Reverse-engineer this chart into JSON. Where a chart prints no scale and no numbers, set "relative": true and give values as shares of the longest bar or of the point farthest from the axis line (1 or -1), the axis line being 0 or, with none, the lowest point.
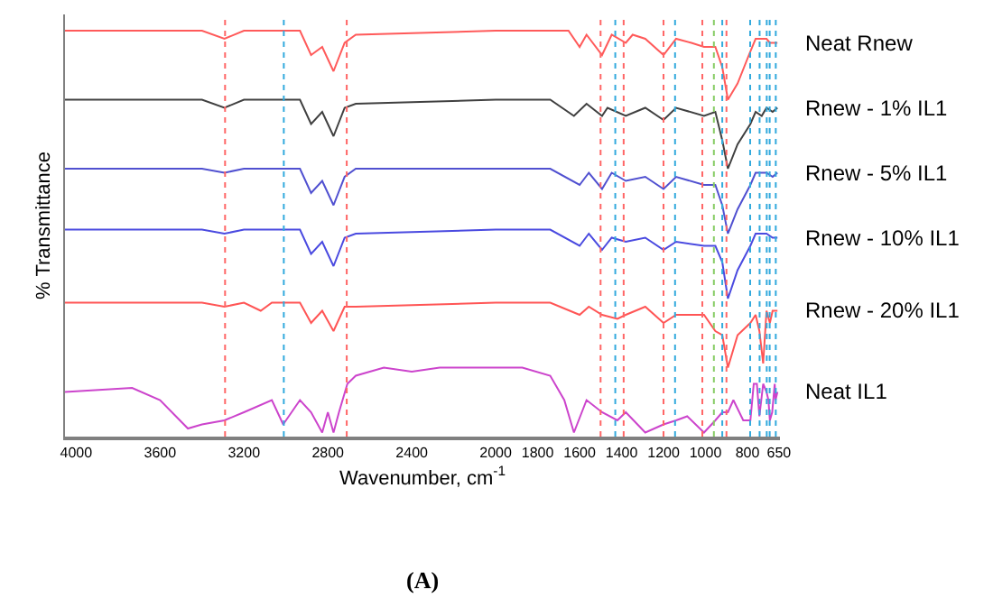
{
  "chart_data": {
    "type": "line",
    "relative": true,
    "xlabel": "Wavenumber, cm$^{-1}$",
    "ylabel": "% Transmittance",
    "xlim": [
      4053,
      645
    ],
    "xticks": [
      4000,
      3600,
      3200,
      2800,
      2400,
      2000,
      1800,
      1600,
      1400,
      1200,
      1000,
      800,
      650
    ],
    "legend": false,
    "marker": "none",
    "line_style": "solid",
    "series": [
      {
        "name": "Neat Rnew",
        "color": "#ff5a5a",
        "x": [
          4053,
          3400,
          3293,
          3200,
          2933,
          2880,
          2827,
          2773,
          2720,
          2667,
          2000,
          1740,
          1653,
          1600,
          1567,
          1493,
          1447,
          1380,
          1347,
          1287,
          1200,
          1140,
          1067,
          1007,
          953,
          920,
          893,
          847,
          793,
          761,
          743,
          709,
          693,
          680,
          657
        ],
        "values": [
          1.0,
          1.0,
          0.98,
          1.0,
          1.0,
          0.94,
          0.96,
          0.9,
          0.97,
          0.99,
          1.0,
          1.0,
          1.0,
          0.96,
          0.99,
          0.94,
          0.99,
          0.97,
          0.99,
          0.98,
          0.94,
          0.98,
          0.97,
          0.96,
          0.96,
          0.91,
          0.83,
          0.87,
          0.94,
          0.98,
          0.98,
          0.98,
          0.97,
          0.97,
          0.97
        ]
      },
      {
        "name": "Rnew - 1% IL1",
        "color": "#404040",
        "x": [
          4053,
          3400,
          3293,
          3200,
          2933,
          2880,
          2827,
          2773,
          2720,
          2667,
          2000,
          1740,
          1627,
          1567,
          1493,
          1467,
          1380,
          1287,
          1200,
          1140,
          1007,
          953,
          920,
          893,
          847,
          786,
          761,
          732,
          709,
          680,
          657
        ],
        "values": [
          0.83,
          0.83,
          0.81,
          0.83,
          0.83,
          0.77,
          0.8,
          0.74,
          0.81,
          0.82,
          0.83,
          0.83,
          0.79,
          0.82,
          0.79,
          0.81,
          0.79,
          0.81,
          0.78,
          0.81,
          0.79,
          0.8,
          0.73,
          0.66,
          0.72,
          0.77,
          0.8,
          0.79,
          0.81,
          0.8,
          0.81
        ]
      },
      {
        "name": "Rnew - 5% IL1",
        "color": "#5050d0",
        "x": [
          4053,
          3400,
          3293,
          3200,
          2933,
          2880,
          2827,
          2773,
          2720,
          2667,
          2000,
          1740,
          1600,
          1556,
          1493,
          1447,
          1380,
          1287,
          1200,
          1140,
          1007,
          953,
          920,
          893,
          847,
          786,
          761,
          709,
          680,
          657
        ],
        "values": [
          0.66,
          0.66,
          0.65,
          0.66,
          0.66,
          0.6,
          0.63,
          0.57,
          0.64,
          0.66,
          0.66,
          0.66,
          0.62,
          0.65,
          0.61,
          0.65,
          0.63,
          0.64,
          0.61,
          0.64,
          0.62,
          0.62,
          0.57,
          0.5,
          0.56,
          0.62,
          0.65,
          0.65,
          0.64,
          0.65
        ]
      },
      {
        "name": "Rnew - 10% IL1",
        "color": "#4a4ae0",
        "x": [
          4053,
          3400,
          3293,
          3200,
          2933,
          2880,
          2827,
          2773,
          2720,
          2667,
          2000,
          1740,
          1600,
          1556,
          1493,
          1447,
          1380,
          1287,
          1200,
          1140,
          1007,
          953,
          920,
          893,
          847,
          786,
          761,
          709,
          680,
          657
        ],
        "values": [
          0.51,
          0.51,
          0.5,
          0.51,
          0.51,
          0.45,
          0.48,
          0.42,
          0.49,
          0.5,
          0.51,
          0.51,
          0.47,
          0.5,
          0.46,
          0.49,
          0.48,
          0.49,
          0.46,
          0.48,
          0.47,
          0.47,
          0.43,
          0.34,
          0.41,
          0.47,
          0.5,
          0.5,
          0.49,
          0.49
        ]
      },
      {
        "name": "Rnew - 20% IL1",
        "color": "#ff5555",
        "x": [
          4053,
          3400,
          3293,
          3200,
          3120,
          3067,
          2933,
          2880,
          2827,
          2773,
          2720,
          2667,
          2000,
          1740,
          1600,
          1556,
          1493,
          1420,
          1380,
          1287,
          1200,
          1140,
          1007,
          953,
          920,
          893,
          847,
          786,
          761,
          743,
          725,
          709,
          693,
          680,
          657
        ],
        "values": [
          0.33,
          0.33,
          0.32,
          0.33,
          0.31,
          0.33,
          0.33,
          0.28,
          0.31,
          0.26,
          0.32,
          0.32,
          0.33,
          0.33,
          0.3,
          0.32,
          0.3,
          0.29,
          0.3,
          0.32,
          0.28,
          0.3,
          0.3,
          0.26,
          0.25,
          0.17,
          0.25,
          0.28,
          0.3,
          0.26,
          0.18,
          0.31,
          0.28,
          0.31,
          0.31
        ]
      },
      {
        "name": "Neat IL1",
        "color": "#cc44cc",
        "x": [
          4053,
          3733,
          3600,
          3467,
          3400,
          3293,
          3200,
          3067,
          3013,
          2933,
          2880,
          2827,
          2800,
          2773,
          2747,
          2707,
          2667,
          2533,
          2400,
          2267,
          2000,
          1873,
          1740,
          1673,
          1627,
          1567,
          1493,
          1420,
          1380,
          1287,
          1200,
          1140,
          1087,
          1007,
          953,
          920,
          893,
          867,
          820,
          786,
          770,
          755,
          743,
          725,
          709,
          700,
          693,
          682,
          670,
          666,
          657
        ],
        "values": [
          0.11,
          0.12,
          0.09,
          0.02,
          0.03,
          0.04,
          0.06,
          0.09,
          0.03,
          0.09,
          0.06,
          0.01,
          0.06,
          0.01,
          0.06,
          0.13,
          0.15,
          0.17,
          0.16,
          0.17,
          0.17,
          0.17,
          0.15,
          0.09,
          0.01,
          0.09,
          0.06,
          0.04,
          0.06,
          0.01,
          0.03,
          0.04,
          0.05,
          0.01,
          0.04,
          0.06,
          0.06,
          0.09,
          0.04,
          0.04,
          0.13,
          0.13,
          0.05,
          0.13,
          0.11,
          0.09,
          0.04,
          0.06,
          0.13,
          0.09,
          0.11
        ]
      }
    ],
    "ref_lines": [
      {
        "axis": "x",
        "value": 3290,
        "color": "#ff6666",
        "line_style": "dotted"
      },
      {
        "axis": "x",
        "value": 3010,
        "color": "#33aadd",
        "line_style": "dotted"
      },
      {
        "axis": "x",
        "value": 2710,
        "color": "#ff6666",
        "line_style": "dotted"
      },
      {
        "axis": "x",
        "value": 1500,
        "color": "#ff6666",
        "line_style": "dotted"
      },
      {
        "axis": "x",
        "value": 1430,
        "color": "#33aadd",
        "line_style": "dotted"
      },
      {
        "axis": "x",
        "value": 1390,
        "color": "#ff6666",
        "line_style": "dotted"
      },
      {
        "axis": "x",
        "value": 1200,
        "color": "#ff6666",
        "line_style": "dotted"
      },
      {
        "axis": "x",
        "value": 1145,
        "color": "#33aadd",
        "line_style": "dotted"
      },
      {
        "axis": "x",
        "value": 1015,
        "color": "#ff6666",
        "line_style": "dotted"
      },
      {
        "axis": "x",
        "value": 960,
        "color": "#88cc66",
        "line_style": "dotted"
      },
      {
        "axis": "x",
        "value": 920,
        "color": "#33aadd",
        "line_style": "dotted"
      },
      {
        "axis": "x",
        "value": 900,
        "color": "#ff6666",
        "line_style": "dotted"
      },
      {
        "axis": "x",
        "value": 787,
        "color": "#33aadd",
        "line_style": "dotted"
      },
      {
        "axis": "x",
        "value": 742,
        "color": "#33aadd",
        "line_style": "dotted"
      },
      {
        "axis": "x",
        "value": 708,
        "color": "#33aadd",
        "line_style": "dotted"
      },
      {
        "axis": "x",
        "value": 694,
        "color": "#33aadd",
        "line_style": "dotted"
      },
      {
        "axis": "x",
        "value": 665,
        "color": "#33aadd",
        "line_style": "dotted"
      }
    ],
    "annotations": [
      "(A)"
    ]
  }
}
